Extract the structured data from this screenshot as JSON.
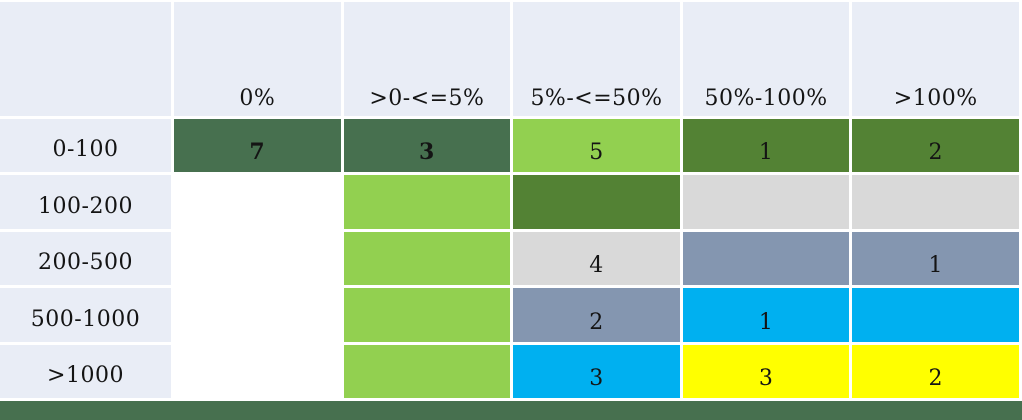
{
  "palette": {
    "page_bg": "#FFFFFF",
    "header_bg": "#E9EDF6",
    "grid_line": "#FFFFFF",
    "text": "#141414",
    "footer_bar": "#47704F",
    "cell_colors": {
      "dark_green": "#47704F",
      "olive_green": "#538234",
      "light_green": "#92D050",
      "light_gray": "#D9D9D9",
      "slate_blue": "#8496B0",
      "cyan": "#00B0F0",
      "yellow": "#FFFF00",
      "white": "#FFFFFF"
    }
  },
  "chart_data": {
    "type": "heatmap",
    "title": "",
    "xlabel": "",
    "ylabel": "",
    "legend": "none",
    "grid": "white cell separators",
    "x_categories": [
      "0%",
      ">0-<=5%",
      "5%-<=50%",
      "50%-100%",
      ">100%"
    ],
    "y_categories": [
      "0-100",
      "100-200",
      "200-500",
      "500-1000",
      ">1000"
    ],
    "values": [
      [
        7,
        3,
        5,
        1,
        2
      ],
      [
        null,
        null,
        null,
        null,
        null
      ],
      [
        null,
        null,
        4,
        null,
        1
      ],
      [
        null,
        null,
        2,
        1,
        null
      ],
      [
        null,
        null,
        3,
        3,
        2
      ]
    ],
    "cell_colors": [
      [
        "dark_green",
        "dark_green",
        "light_green",
        "olive_green",
        "olive_green"
      ],
      [
        "white",
        "light_green",
        "olive_green",
        "light_gray",
        "light_gray"
      ],
      [
        "white",
        "light_green",
        "light_gray",
        "slate_blue",
        "slate_blue"
      ],
      [
        "white",
        "light_green",
        "slate_blue",
        "cyan",
        "cyan"
      ],
      [
        "white",
        "light_green",
        "cyan",
        "yellow",
        "yellow"
      ]
    ],
    "bold_cells": [
      [
        true,
        true,
        false,
        false,
        false
      ],
      [
        false,
        false,
        false,
        false,
        false
      ],
      [
        false,
        false,
        false,
        false,
        false
      ],
      [
        false,
        false,
        false,
        false,
        false
      ],
      [
        false,
        false,
        false,
        false,
        false
      ]
    ]
  }
}
